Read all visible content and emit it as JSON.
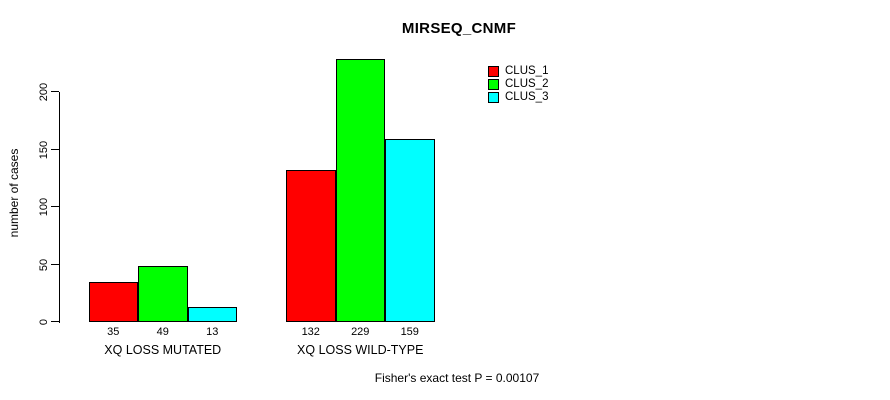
{
  "chart_data": {
    "type": "bar",
    "title": "MIRSEQ_CNMF",
    "ylabel": "number of cases",
    "xlabel": "",
    "categories": [
      "XQ LOSS MUTATED",
      "XQ LOSS WILD-TYPE"
    ],
    "series": [
      {
        "name": "CLUS_1",
        "color": "#FF0000",
        "values": [
          35,
          132
        ]
      },
      {
        "name": "CLUS_2",
        "color": "#00FF00",
        "values": [
          49,
          229
        ]
      },
      {
        "name": "CLUS_3",
        "color": "#00FFFF",
        "values": [
          13,
          159
        ]
      }
    ],
    "yticks": [
      0,
      50,
      100,
      150,
      200
    ],
    "ylim": [
      0,
      230
    ],
    "show_bar_values": true,
    "grid": false,
    "legend_position": "top-right",
    "axis_color": "#000000",
    "background": "#FFFFFF",
    "annotation": "Fisher's exact test P = 0.00107"
  }
}
